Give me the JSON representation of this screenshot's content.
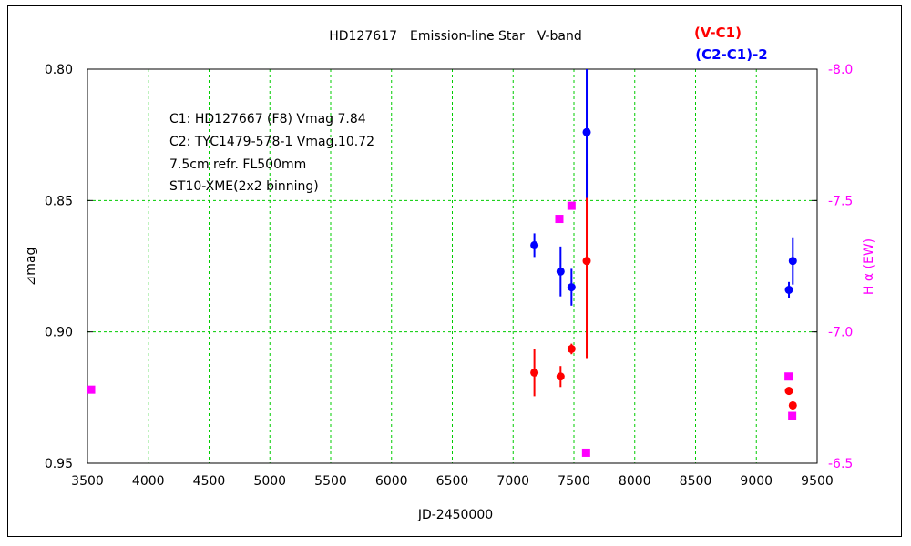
{
  "chart_data": {
    "type": "scatter",
    "title": "HD127617　Emission-line Star　V-band",
    "xlabel": "JD-2450000",
    "ylabel_left": "⊿mag",
    "ylabel_right": "H α (EW)",
    "xlim": [
      3500,
      9500
    ],
    "ylim_left": [
      0.8,
      0.95
    ],
    "ylim_right": [
      -8.0,
      -6.5
    ],
    "left_axis_inverted": true,
    "x_ticks": [
      3500,
      4000,
      4500,
      5000,
      5500,
      6000,
      6500,
      7000,
      7500,
      8000,
      8500,
      9000,
      9500
    ],
    "x_tick_labels": [
      "3500",
      "4000",
      "4500",
      "5000",
      "5500",
      "6000",
      "6500",
      "7000",
      "7500",
      "8000",
      "8500",
      "9000",
      "9500"
    ],
    "y_left_ticks": [
      0.8,
      0.85,
      0.9,
      0.95
    ],
    "y_left_tick_labels": [
      "0.80",
      "0.85",
      "0.90",
      "0.95"
    ],
    "y_right_ticks": [
      -8.0,
      -7.5,
      -7.0,
      -6.5
    ],
    "y_right_tick_labels": [
      "-8.0",
      "-7.5",
      "-7.0",
      "-6.5"
    ],
    "grid": true,
    "legend_position": "top-right",
    "annotations": [
      "C1: HD127667 (F8) Vmag 7.84",
      "C2: TYC1479-578-1 Vmag.10.72",
      "7.5cm refr. FL500mm",
      "ST10-XME(2x2 binning)"
    ],
    "series": [
      {
        "name": "(V-C1)",
        "color": "#ff0000",
        "axis": "left",
        "x": [
          7175,
          7390,
          7480,
          7605,
          9268,
          9300
        ],
        "y": [
          0.9155,
          0.917,
          0.9065,
          0.873,
          0.9225,
          0.928
        ],
        "err": [
          0.009,
          0.004,
          0.002,
          0.037,
          0.0015,
          0.0015
        ]
      },
      {
        "name": "(C2-C1)-2",
        "color": "#0000ff",
        "axis": "left",
        "x": [
          7175,
          7390,
          7480,
          7605,
          9268,
          9300
        ],
        "y": [
          0.867,
          0.877,
          0.883,
          0.824,
          0.884,
          0.873
        ],
        "err": [
          0.0045,
          0.0095,
          0.007,
          0.025,
          0.003,
          0.009
        ]
      },
      {
        "name": "",
        "color": "#ff00ff",
        "axis": "right",
        "x": [
          3530,
          7380,
          7480,
          7600,
          9265,
          9295
        ],
        "y": [
          -6.78,
          -7.43,
          -7.48,
          -6.54,
          -6.83,
          -6.68
        ]
      }
    ]
  }
}
